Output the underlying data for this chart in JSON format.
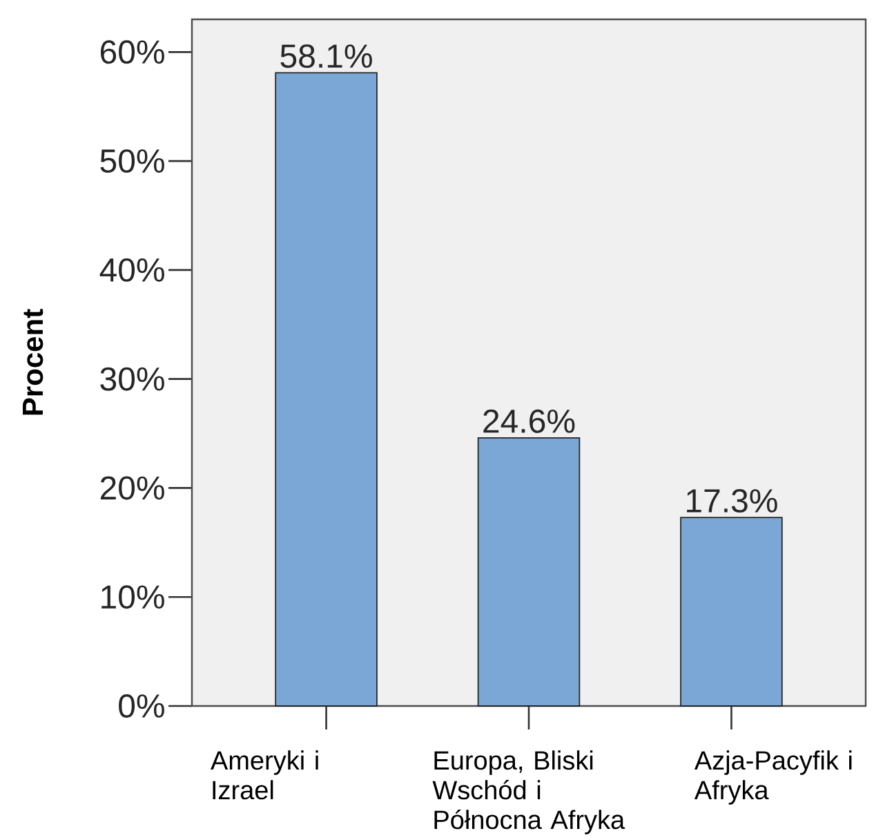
{
  "chart_data": {
    "type": "bar",
    "ylabel": "Procent",
    "categories": [
      "Ameryki i Izrael",
      "Europa, Bliski Wschód i Północna Afryka",
      "Azja-Pacyfik i Afryka"
    ],
    "values": [
      58.1,
      24.6,
      17.3
    ],
    "value_labels": [
      "58.1%",
      "24.6%",
      "17.3%"
    ],
    "color": "#7aa7d6",
    "ylim": [
      0,
      63
    ],
    "yticks": [
      {
        "value": 0,
        "label": "0%"
      },
      {
        "value": 10,
        "label": "10%"
      },
      {
        "value": 20,
        "label": "20%"
      },
      {
        "value": 30,
        "label": "30%"
      },
      {
        "value": 40,
        "label": "40%"
      },
      {
        "value": 50,
        "label": "50%"
      },
      {
        "value": 60,
        "label": "60%"
      }
    ]
  }
}
